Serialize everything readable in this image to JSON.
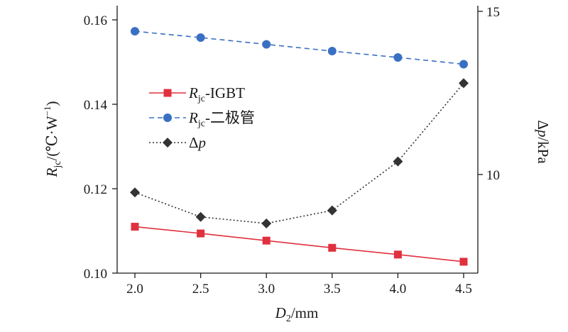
{
  "chart_data": {
    "type": "line",
    "x": [
      2.0,
      2.5,
      3.0,
      3.5,
      4.0,
      4.5
    ],
    "x_tick_labels": [
      "2.0",
      "2.5",
      "3.0",
      "3.5",
      "4.0",
      "4.5"
    ],
    "xlim": [
      1.95,
      4.6
    ],
    "xlabel": {
      "symbol": "D",
      "sub": "2",
      "unit": "/mm"
    },
    "y_left": {
      "lim": [
        0.1,
        0.16
      ],
      "ticks": [
        0.1,
        0.12,
        0.14,
        0.16
      ],
      "tick_labels": [
        "0.10",
        "0.12",
        "0.14",
        "0.16"
      ],
      "label": {
        "symbol": "R",
        "sub": "jc",
        "unit": "/(℃·W",
        "sup": "−1",
        "close": ")"
      }
    },
    "y_right": {
      "lim": [
        7.0,
        15.0
      ],
      "ticks": [
        10,
        15
      ],
      "tick_labels": [
        "10",
        "15"
      ],
      "label": {
        "prefix": "Δ",
        "symbol": "p",
        "unit": "/kPa"
      }
    },
    "series": [
      {
        "name": "Rjc-IGBT",
        "legend": {
          "symbol": "R",
          "sub": "jc",
          "suffix": "-IGBT"
        },
        "axis": "left",
        "values": [
          0.111,
          0.1094,
          0.1077,
          0.106,
          0.1044,
          0.1027
        ],
        "color": "#e0303e",
        "marker": "square",
        "line": "solid"
      },
      {
        "name": "Rjc-二极管",
        "legend": {
          "symbol": "R",
          "sub": "jc",
          "suffix": "-二极管"
        },
        "axis": "left",
        "values": [
          0.1573,
          0.1558,
          0.1542,
          0.1526,
          0.1511,
          0.1495
        ],
        "color": "#3a70c4",
        "marker": "circle",
        "line": "dashed"
      },
      {
        "name": "Δp",
        "legend": {
          "prefix": "Δ",
          "symbol": "p"
        },
        "axis": "right",
        "values": [
          9.45,
          8.7,
          8.5,
          8.9,
          10.4,
          12.8
        ],
        "color": "#333333",
        "marker": "diamond",
        "line": "dotted"
      }
    ]
  }
}
